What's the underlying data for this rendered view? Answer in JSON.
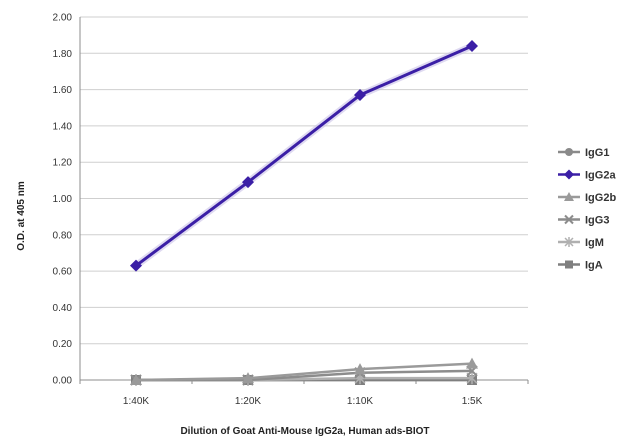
{
  "chart_data": {
    "type": "line",
    "title": "",
    "xlabel": "Dilution of Goat Anti-Mouse IgG2a, Human ads-BIOT",
    "ylabel": "O.D. at 405 nm",
    "categories": [
      "1:40K",
      "1:20K",
      "1:10K",
      "1:5K"
    ],
    "ylim": [
      0,
      2.0
    ],
    "yticks": [
      "0.00",
      "0.20",
      "0.40",
      "0.60",
      "0.80",
      "1.00",
      "1.20",
      "1.40",
      "1.60",
      "1.80",
      "2.00"
    ],
    "grid": true,
    "legend_position": "right",
    "series": [
      {
        "name": "IgG1",
        "color": "#8a8a8a",
        "marker": "circle",
        "values": [
          0.0,
          0.0,
          0.0,
          0.0
        ]
      },
      {
        "name": "IgG2a",
        "color": "#3b1fa6",
        "marker": "diamond",
        "values": [
          0.63,
          1.09,
          1.57,
          1.84
        ]
      },
      {
        "name": "IgG2b",
        "color": "#9a9a9a",
        "marker": "triangle",
        "values": [
          0.0,
          0.01,
          0.06,
          0.09
        ]
      },
      {
        "name": "IgG3",
        "color": "#8c8c8c",
        "marker": "x",
        "values": [
          0.0,
          0.0,
          0.04,
          0.05
        ]
      },
      {
        "name": "IgM",
        "color": "#b0b0b0",
        "marker": "star",
        "values": [
          0.0,
          0.0,
          0.01,
          0.01
        ]
      },
      {
        "name": "IgA",
        "color": "#7f7f7f",
        "marker": "square",
        "values": [
          0.0,
          0.0,
          0.0,
          0.0
        ]
      }
    ]
  }
}
